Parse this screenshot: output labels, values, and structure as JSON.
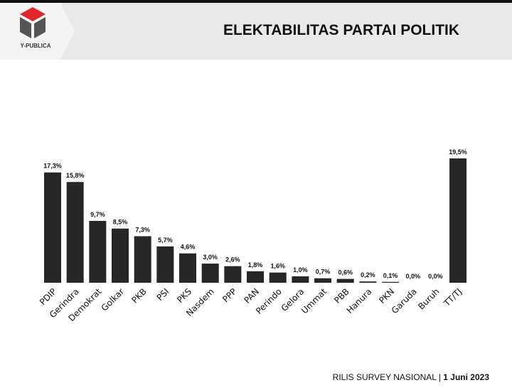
{
  "header": {
    "title": "ELEKTABILITAS PARTAI POLITIK",
    "logo_text": "Y-PUBLICA"
  },
  "footer": {
    "label": "RILIS SURVEY NASIONAL | ",
    "date": "1 Juni 2023"
  },
  "colors": {
    "bar": "#262626",
    "logo_red": "#e0262b",
    "logo_gray": "#555555"
  },
  "chart_data": {
    "type": "bar",
    "title": "ELEKTABILITAS PARTAI POLITIK",
    "categories": [
      "PDIP",
      "Gerindra",
      "Demokrat",
      "Golkar",
      "PKB",
      "PSI",
      "PKS",
      "Nasdem",
      "PPP",
      "PAN",
      "Perindo",
      "Gelora",
      "Ummat",
      "PBB",
      "Hanura",
      "PKN",
      "Garuda",
      "Buruh",
      "TT/TJ"
    ],
    "values": [
      17.3,
      15.8,
      9.7,
      8.5,
      7.3,
      5.7,
      4.6,
      3.0,
      2.6,
      1.8,
      1.6,
      1.0,
      0.7,
      0.6,
      0.2,
      0.1,
      0.0,
      0.0,
      19.5
    ],
    "labels": [
      "17,3%",
      "15,8%",
      "9,7%",
      "8,5%",
      "7,3%",
      "5,7%",
      "4,6%",
      "3,0%",
      "2,6%",
      "1,8%",
      "1,6%",
      "1,0%",
      "0,7%",
      "0,6%",
      "0,2%",
      "0,1%",
      "0,0%",
      "0,0%",
      "19,5%"
    ],
    "grid": false,
    "xlabel": "",
    "ylabel": ""
  }
}
